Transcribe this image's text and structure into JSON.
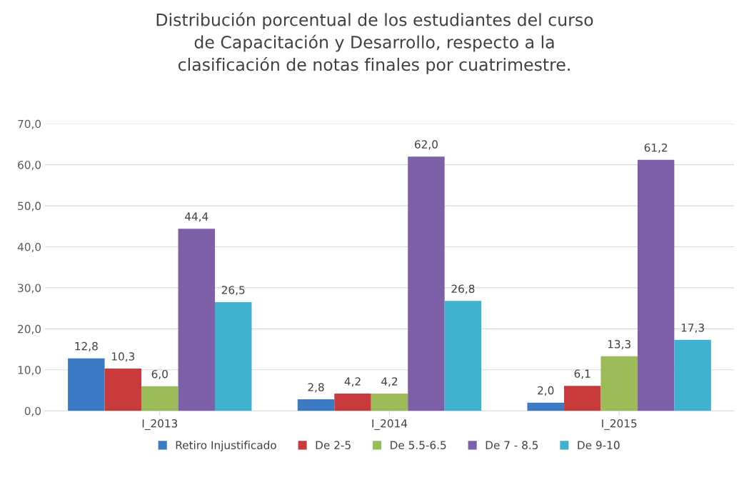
{
  "chart_data": {
    "type": "bar",
    "title": "Distribución porcentual de los estudiantes del curso\nde Capacitación y Desarrollo, respecto a la\nclasificación de notas finales por cuatrimestre.",
    "categories": [
      "I_2013",
      "I_2014",
      "I_2015"
    ],
    "series": [
      {
        "name": "Retiro Injustificado",
        "color": "#3b7ac4",
        "values": [
          12.8,
          2.8,
          2.0
        ],
        "value_labels": [
          "12,8",
          "2,8",
          "2,0"
        ]
      },
      {
        "name": "De 2-5",
        "color": "#c93a3d",
        "values": [
          10.3,
          4.2,
          6.1
        ],
        "value_labels": [
          "10,3",
          "4,2",
          "6,1"
        ]
      },
      {
        "name": "De 5.5-6.5",
        "color": "#9bbb59",
        "values": [
          6.0,
          4.2,
          13.3
        ],
        "value_labels": [
          "6,0",
          "4,2",
          "13,3"
        ]
      },
      {
        "name": "De 7 - 8.5",
        "color": "#7d60a7",
        "values": [
          44.4,
          62.0,
          61.2
        ],
        "value_labels": [
          "44,4",
          "62,0",
          "61,2"
        ]
      },
      {
        "name": "De 9-10",
        "color": "#40b2d0",
        "values": [
          26.5,
          26.8,
          17.3
        ],
        "value_labels": [
          "26,5",
          "26,8",
          "17,3"
        ]
      }
    ],
    "ylim": [
      0,
      70
    ],
    "yticks": [
      {
        "value": 0,
        "label": "0,0"
      },
      {
        "value": 10,
        "label": "10,0"
      },
      {
        "value": 20,
        "label": "20,0"
      },
      {
        "value": 30,
        "label": "30,0"
      },
      {
        "value": 40,
        "label": "40,0"
      },
      {
        "value": 50,
        "label": "50,0"
      },
      {
        "value": 60,
        "label": "60,0"
      },
      {
        "value": 70,
        "label": "70,0"
      }
    ],
    "grid": "y",
    "legend": "bottom"
  }
}
